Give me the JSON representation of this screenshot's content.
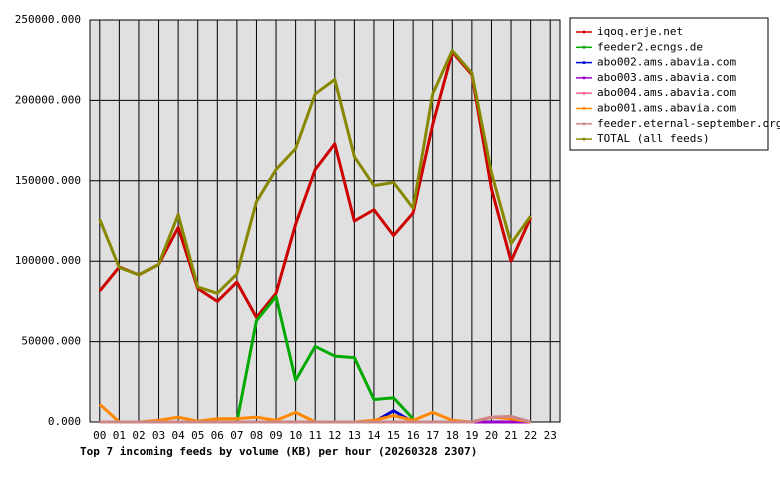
{
  "chart_data": {
    "type": "line",
    "title": "Top 7 incoming feeds by volume (KB) per hour (20260328 2307)",
    "categories": [
      "00",
      "01",
      "02",
      "03",
      "04",
      "05",
      "06",
      "07",
      "08",
      "09",
      "10",
      "11",
      "12",
      "13",
      "14",
      "15",
      "16",
      "17",
      "18",
      "19",
      "20",
      "21",
      "22",
      "23"
    ],
    "ylim": [
      0,
      250000
    ],
    "yticks": [
      {
        "value": 0,
        "label": "0.000"
      },
      {
        "value": 50000,
        "label": "50000.000"
      },
      {
        "value": 100000,
        "label": "100000.000"
      },
      {
        "value": 150000,
        "label": "150000.000"
      },
      {
        "value": 200000,
        "label": "200000.000"
      },
      {
        "value": 250000,
        "label": "250000.000"
      }
    ],
    "grid": true,
    "legend": "right",
    "series": [
      {
        "name": "iqoq.erje.net",
        "color": "#cc0000",
        "values": [
          81500,
          96400,
          91500,
          98000,
          121000,
          83000,
          75000,
          87000,
          65000,
          80000,
          123000,
          157000,
          173000,
          125000,
          132000,
          116000,
          130000,
          185000,
          230000,
          216000,
          145000,
          100000,
          127000,
          null
        ]
      },
      {
        "name": "feeder2.ecngs.de",
        "color": "#00aa00",
        "values": [
          null,
          null,
          null,
          null,
          null,
          null,
          null,
          0,
          63000,
          78000,
          26000,
          47000,
          41000,
          40000,
          14000,
          15000,
          2000,
          null,
          null,
          null,
          null,
          null,
          null,
          null
        ]
      },
      {
        "name": "abo002.ams.abavia.com",
        "color": "#0000cc",
        "values": [
          null,
          null,
          null,
          null,
          null,
          null,
          null,
          null,
          null,
          null,
          null,
          null,
          null,
          null,
          0,
          7000,
          0,
          null,
          null,
          null,
          null,
          null,
          null,
          null
        ]
      },
      {
        "name": "abo003.ams.abavia.com",
        "color": "#9900cc",
        "values": [
          0,
          0,
          0,
          0,
          0,
          0,
          0,
          0,
          0,
          0,
          0,
          0,
          0,
          0,
          0,
          0,
          0,
          0,
          0,
          0,
          0,
          0,
          0,
          null
        ]
      },
      {
        "name": "abo004.ams.abavia.com",
        "color": "#ff6688",
        "values": [
          0,
          0,
          0,
          0,
          0,
          0,
          0,
          0,
          0,
          0,
          0,
          0,
          0,
          0,
          0,
          0,
          0,
          0,
          0,
          0,
          3000,
          3000,
          0,
          null
        ]
      },
      {
        "name": "abo001.ams.abavia.com",
        "color": "#ff8800",
        "values": [
          11000,
          0,
          0,
          1000,
          3000,
          500,
          2000,
          2000,
          3000,
          1000,
          6000,
          0,
          0,
          0,
          1000,
          4000,
          1000,
          6000,
          1000,
          0,
          3000,
          2000,
          0,
          null
        ]
      },
      {
        "name": "feeder.eternal-september.org",
        "color": "#cc8888",
        "values": [
          0,
          0,
          0,
          0,
          0,
          0,
          0,
          0,
          0,
          0,
          0,
          0,
          0,
          0,
          0,
          0,
          0,
          0,
          0,
          0,
          3000,
          3500,
          0,
          null
        ]
      },
      {
        "name": "TOTAL (all feeds)",
        "color": "#888800",
        "values": [
          126000,
          96000,
          91500,
          98000,
          129000,
          84000,
          80000,
          92000,
          137000,
          157000,
          170000,
          204000,
          213000,
          165000,
          147000,
          149000,
          133000,
          204000,
          231000,
          217000,
          155000,
          111000,
          128000,
          null
        ]
      }
    ]
  }
}
